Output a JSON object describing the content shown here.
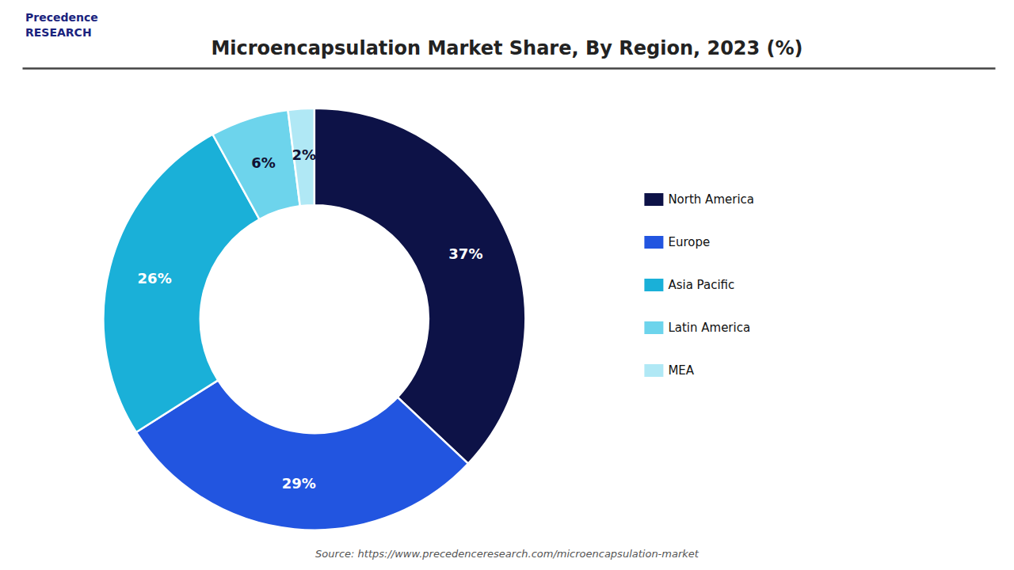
{
  "chart_data": {
    "type": "pie",
    "title": "Microencapsulation Market Share, By Region, 2023 (%)",
    "categories": [
      "North America",
      "Europe",
      "Asia Pacific",
      "Latin America",
      "MEA"
    ],
    "values": [
      37,
      29,
      26,
      6,
      2
    ],
    "value_labels": [
      "37%",
      "29%",
      "26%",
      "6%",
      "2%"
    ],
    "colors": [
      "#0d1247",
      "#2255e0",
      "#1ab0d8",
      "#6dd4ec",
      "#b0e8f5"
    ],
    "data_labels": true,
    "legend": "right",
    "annotations": [
      "Precedence\nRESEARCH",
      "Source: https://www.precedenceresearch.com/microencapsulation-market"
    ]
  }
}
